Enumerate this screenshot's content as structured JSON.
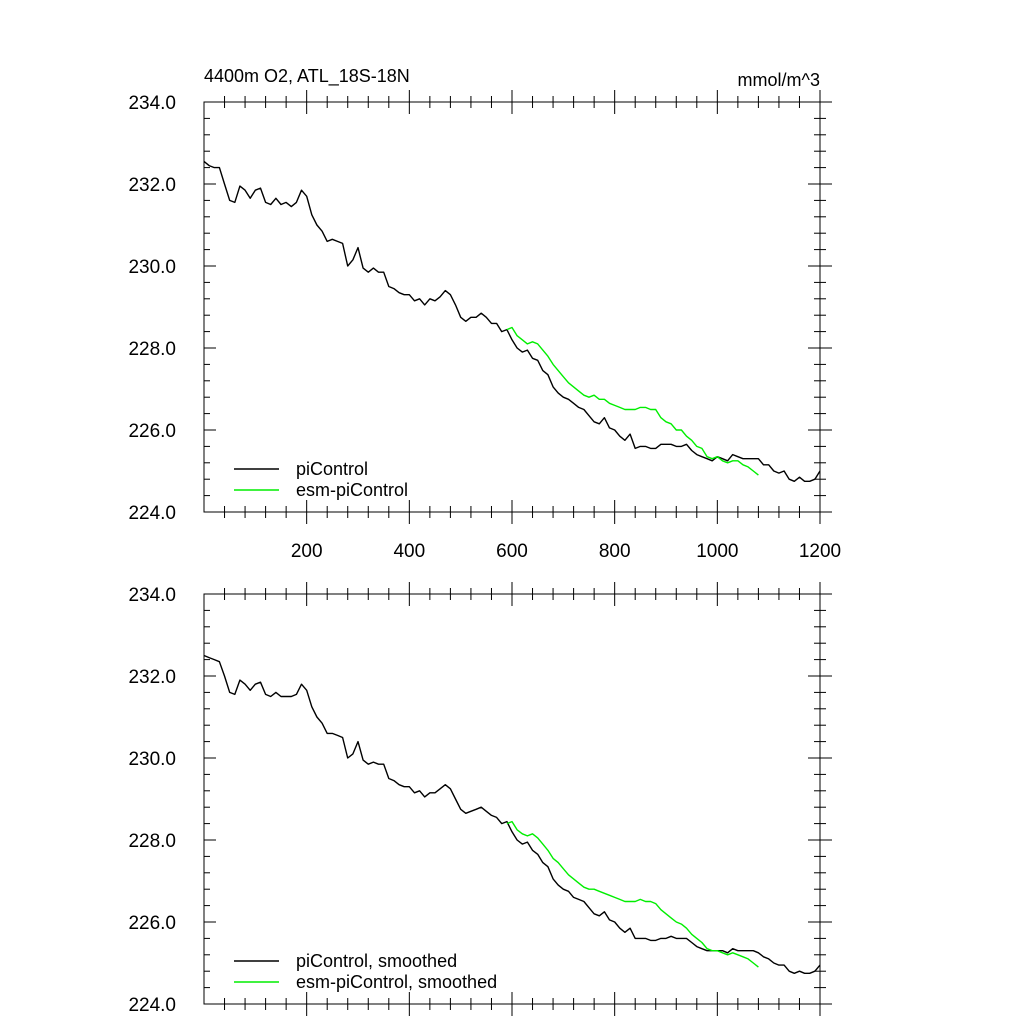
{
  "colors": {
    "piControl": "#000000",
    "esm_piControl": "#00ee00",
    "axis": "#000000"
  },
  "chart_data": [
    {
      "type": "line",
      "title": "4400m O2, ATL_18S-18N",
      "units": "mmol/m^3",
      "xlim": [
        0,
        1200
      ],
      "ylim": [
        224,
        234
      ],
      "xticks": [
        200,
        400,
        600,
        800,
        1000,
        1200
      ],
      "xtick_labels": [
        "200",
        "400",
        "600",
        "800",
        "1000",
        "1200"
      ],
      "yticks": [
        224,
        226,
        228,
        230,
        232,
        234
      ],
      "ytick_labels": [
        "224.0",
        "226.0",
        "228.0",
        "230.0",
        "232.0",
        "234.0"
      ],
      "legend_placement": "bottom-left",
      "series": [
        {
          "name": "piControl",
          "x": [
            0,
            10,
            20,
            30,
            40,
            50,
            60,
            70,
            80,
            90,
            100,
            110,
            120,
            130,
            140,
            150,
            160,
            170,
            180,
            190,
            200,
            210,
            220,
            230,
            240,
            250,
            260,
            270,
            280,
            290,
            300,
            310,
            320,
            330,
            340,
            350,
            360,
            370,
            380,
            390,
            400,
            410,
            420,
            430,
            440,
            450,
            460,
            470,
            480,
            490,
            500,
            510,
            520,
            530,
            540,
            550,
            560,
            570,
            580,
            590,
            600,
            610,
            620,
            630,
            640,
            650,
            660,
            670,
            680,
            690,
            700,
            710,
            720,
            730,
            740,
            750,
            760,
            770,
            780,
            790,
            800,
            810,
            820,
            830,
            840,
            850,
            860,
            870,
            880,
            890,
            900,
            910,
            920,
            930,
            940,
            950,
            960,
            970,
            980,
            990,
            1000,
            1010,
            1020,
            1030,
            1040,
            1050,
            1060,
            1070,
            1080,
            1090,
            1100,
            1110,
            1120,
            1130,
            1140,
            1150,
            1160,
            1170,
            1180,
            1190,
            1200
          ],
          "values": [
            232.55,
            232.45,
            232.4,
            232.4,
            232.0,
            231.6,
            231.55,
            231.95,
            231.85,
            231.65,
            231.85,
            231.9,
            231.55,
            231.5,
            231.65,
            231.5,
            231.55,
            231.45,
            231.55,
            231.85,
            231.7,
            231.25,
            231.0,
            230.85,
            230.6,
            230.65,
            230.6,
            230.55,
            230.0,
            230.15,
            230.45,
            229.95,
            229.85,
            229.95,
            229.85,
            229.85,
            229.5,
            229.45,
            229.35,
            229.3,
            229.3,
            229.15,
            229.2,
            229.05,
            229.2,
            229.15,
            229.25,
            229.4,
            229.3,
            229.05,
            228.75,
            228.65,
            228.75,
            228.75,
            228.85,
            228.75,
            228.6,
            228.6,
            228.4,
            228.45,
            228.2,
            228.0,
            227.9,
            227.95,
            227.75,
            227.7,
            227.45,
            227.35,
            227.05,
            226.9,
            226.8,
            226.75,
            226.65,
            226.55,
            226.5,
            226.35,
            226.2,
            226.15,
            226.3,
            226.05,
            226.0,
            225.85,
            225.75,
            225.9,
            225.55,
            225.6,
            225.6,
            225.55,
            225.55,
            225.65,
            225.65,
            225.65,
            225.6,
            225.6,
            225.65,
            225.5,
            225.4,
            225.35,
            225.3,
            225.25,
            225.35,
            225.3,
            225.25,
            225.4,
            225.35,
            225.3,
            225.3,
            225.3,
            225.3,
            225.15,
            225.15,
            225.0,
            224.95,
            225.0,
            224.8,
            224.75,
            224.85,
            224.75,
            224.75,
            224.8,
            225.0
          ]
        },
        {
          "name": "esm-piControl",
          "x": [
            590,
            600,
            610,
            620,
            630,
            640,
            650,
            660,
            670,
            680,
            690,
            700,
            710,
            720,
            730,
            740,
            750,
            760,
            770,
            780,
            790,
            800,
            810,
            820,
            830,
            840,
            850,
            860,
            870,
            880,
            890,
            900,
            910,
            920,
            930,
            940,
            950,
            960,
            970,
            980,
            990,
            1000,
            1010,
            1020,
            1030,
            1040,
            1050,
            1060,
            1070,
            1080
          ],
          "values": [
            228.45,
            228.5,
            228.3,
            228.2,
            228.1,
            228.15,
            228.1,
            227.95,
            227.8,
            227.6,
            227.45,
            227.3,
            227.15,
            227.05,
            226.95,
            226.85,
            226.8,
            226.85,
            226.75,
            226.75,
            226.65,
            226.6,
            226.55,
            226.5,
            226.5,
            226.5,
            226.55,
            226.55,
            226.5,
            226.5,
            226.3,
            226.2,
            226.15,
            226.0,
            226.0,
            225.85,
            225.75,
            225.6,
            225.55,
            225.35,
            225.3,
            225.35,
            225.25,
            225.2,
            225.25,
            225.25,
            225.15,
            225.1,
            225.0,
            224.9
          ]
        }
      ]
    },
    {
      "type": "line",
      "title": "",
      "xlim": [
        0,
        1200
      ],
      "ylim": [
        224,
        234
      ],
      "xticks": [
        200,
        400,
        600,
        800,
        1000,
        1200
      ],
      "yticks": [
        224,
        226,
        228,
        230,
        232,
        234
      ],
      "ytick_labels": [
        "224.0",
        "226.0",
        "228.0",
        "230.0",
        "232.0",
        "234.0"
      ],
      "legend_placement": "bottom-left",
      "series": [
        {
          "name": "piControl, smoothed",
          "x": [
            0,
            10,
            20,
            30,
            40,
            50,
            60,
            70,
            80,
            90,
            100,
            110,
            120,
            130,
            140,
            150,
            160,
            170,
            180,
            190,
            200,
            210,
            220,
            230,
            240,
            250,
            260,
            270,
            280,
            290,
            300,
            310,
            320,
            330,
            340,
            350,
            360,
            370,
            380,
            390,
            400,
            410,
            420,
            430,
            440,
            450,
            460,
            470,
            480,
            490,
            500,
            510,
            520,
            530,
            540,
            550,
            560,
            570,
            580,
            590,
            600,
            610,
            620,
            630,
            640,
            650,
            660,
            670,
            680,
            690,
            700,
            710,
            720,
            730,
            740,
            750,
            760,
            770,
            780,
            790,
            800,
            810,
            820,
            830,
            840,
            850,
            860,
            870,
            880,
            890,
            900,
            910,
            920,
            930,
            940,
            950,
            960,
            970,
            980,
            990,
            1000,
            1010,
            1020,
            1030,
            1040,
            1050,
            1060,
            1070,
            1080,
            1090,
            1100,
            1110,
            1120,
            1130,
            1140,
            1150,
            1160,
            1170,
            1180,
            1190,
            1200
          ],
          "values": [
            232.5,
            232.45,
            232.4,
            232.35,
            232.0,
            231.6,
            231.55,
            231.9,
            231.8,
            231.65,
            231.8,
            231.85,
            231.55,
            231.5,
            231.6,
            231.5,
            231.5,
            231.5,
            231.55,
            231.8,
            231.65,
            231.25,
            231.0,
            230.85,
            230.6,
            230.6,
            230.55,
            230.5,
            230.0,
            230.1,
            230.4,
            229.95,
            229.85,
            229.9,
            229.85,
            229.85,
            229.5,
            229.45,
            229.35,
            229.3,
            229.3,
            229.15,
            229.2,
            229.05,
            229.15,
            229.15,
            229.25,
            229.35,
            229.25,
            229.0,
            228.75,
            228.65,
            228.7,
            228.75,
            228.8,
            228.7,
            228.6,
            228.55,
            228.4,
            228.45,
            228.2,
            228.0,
            227.9,
            227.95,
            227.75,
            227.65,
            227.45,
            227.35,
            227.05,
            226.9,
            226.8,
            226.75,
            226.6,
            226.55,
            226.5,
            226.35,
            226.2,
            226.15,
            226.25,
            226.05,
            226.0,
            225.85,
            225.75,
            225.85,
            225.6,
            225.6,
            225.6,
            225.55,
            225.55,
            225.6,
            225.6,
            225.65,
            225.6,
            225.6,
            225.6,
            225.5,
            225.4,
            225.35,
            225.3,
            225.3,
            225.3,
            225.3,
            225.25,
            225.35,
            225.3,
            225.3,
            225.3,
            225.3,
            225.25,
            225.15,
            225.1,
            225.0,
            224.95,
            224.95,
            224.8,
            224.75,
            224.8,
            224.75,
            224.75,
            224.8,
            224.95
          ]
        },
        {
          "name": "esm-piControl, smoothed",
          "x": [
            590,
            600,
            610,
            620,
            630,
            640,
            650,
            660,
            670,
            680,
            690,
            700,
            710,
            720,
            730,
            740,
            750,
            760,
            770,
            780,
            790,
            800,
            810,
            820,
            830,
            840,
            850,
            860,
            870,
            880,
            890,
            900,
            910,
            920,
            930,
            940,
            950,
            960,
            970,
            980,
            990,
            1000,
            1010,
            1020,
            1030,
            1040,
            1050,
            1060,
            1070,
            1080
          ],
          "values": [
            228.4,
            228.45,
            228.25,
            228.15,
            228.1,
            228.15,
            228.05,
            227.9,
            227.75,
            227.55,
            227.45,
            227.3,
            227.15,
            227.05,
            226.95,
            226.85,
            226.8,
            226.8,
            226.75,
            226.7,
            226.65,
            226.6,
            226.55,
            226.5,
            226.5,
            226.5,
            226.55,
            226.5,
            226.5,
            226.45,
            226.3,
            226.2,
            226.1,
            226.0,
            225.95,
            225.85,
            225.7,
            225.6,
            225.5,
            225.35,
            225.3,
            225.3,
            225.25,
            225.2,
            225.25,
            225.2,
            225.15,
            225.1,
            225.0,
            224.9
          ]
        }
      ]
    }
  ]
}
